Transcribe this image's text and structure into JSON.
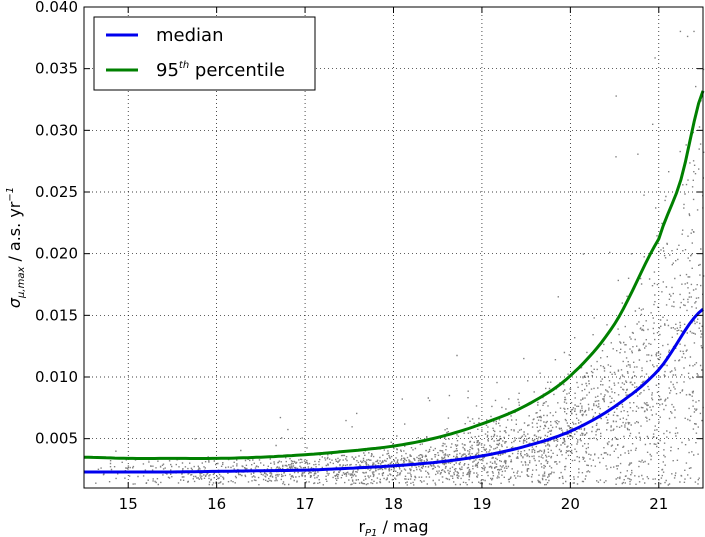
{
  "chart_data": {
    "type": "scatter",
    "xlabel": {
      "main": "r",
      "sub": "P1",
      "rest": " / mag"
    },
    "ylabel": {
      "main": "σ",
      "sub": "μ,max",
      "rest": " / a.s. yr",
      "sup": "−1"
    },
    "xlim": [
      14.5,
      21.5
    ],
    "ylim": [
      0.001,
      0.04
    ],
    "xticks": [
      "15",
      "16",
      "17",
      "18",
      "19",
      "20",
      "21"
    ],
    "yticks": [
      "0.005",
      "0.010",
      "0.015",
      "0.020",
      "0.025",
      "0.030",
      "0.035",
      "0.040"
    ],
    "grid": true,
    "legend_position": "top-left",
    "series": [
      {
        "name": "median",
        "color": "#0000ee",
        "x": [
          14.5,
          15.0,
          15.5,
          16.0,
          16.5,
          17.0,
          17.5,
          18.0,
          18.5,
          19.0,
          19.5,
          20.0,
          20.5,
          21.0,
          21.5
        ],
        "y": [
          0.0023,
          0.0023,
          0.0023,
          0.00235,
          0.0024,
          0.00245,
          0.0026,
          0.0028,
          0.0031,
          0.0036,
          0.0044,
          0.0056,
          0.0076,
          0.0106,
          0.0155
        ]
      },
      {
        "name_parts": {
          "base": "95",
          "sup": "th",
          "rest": " percentile"
        },
        "color": "#008000",
        "x": [
          14.5,
          15.0,
          15.5,
          16.0,
          16.5,
          17.0,
          17.5,
          18.0,
          18.5,
          19.0,
          19.5,
          20.0,
          20.5,
          21.0,
          21.25,
          21.5
        ],
        "y": [
          0.0035,
          0.0034,
          0.0034,
          0.0034,
          0.0035,
          0.0037,
          0.004,
          0.0044,
          0.0051,
          0.0062,
          0.0077,
          0.0101,
          0.0143,
          0.0212,
          0.026,
          0.0332
        ]
      }
    ],
    "scatter": {
      "color": "#808080",
      "description_free": true,
      "x_range": [
        14.5,
        21.5
      ]
    }
  }
}
